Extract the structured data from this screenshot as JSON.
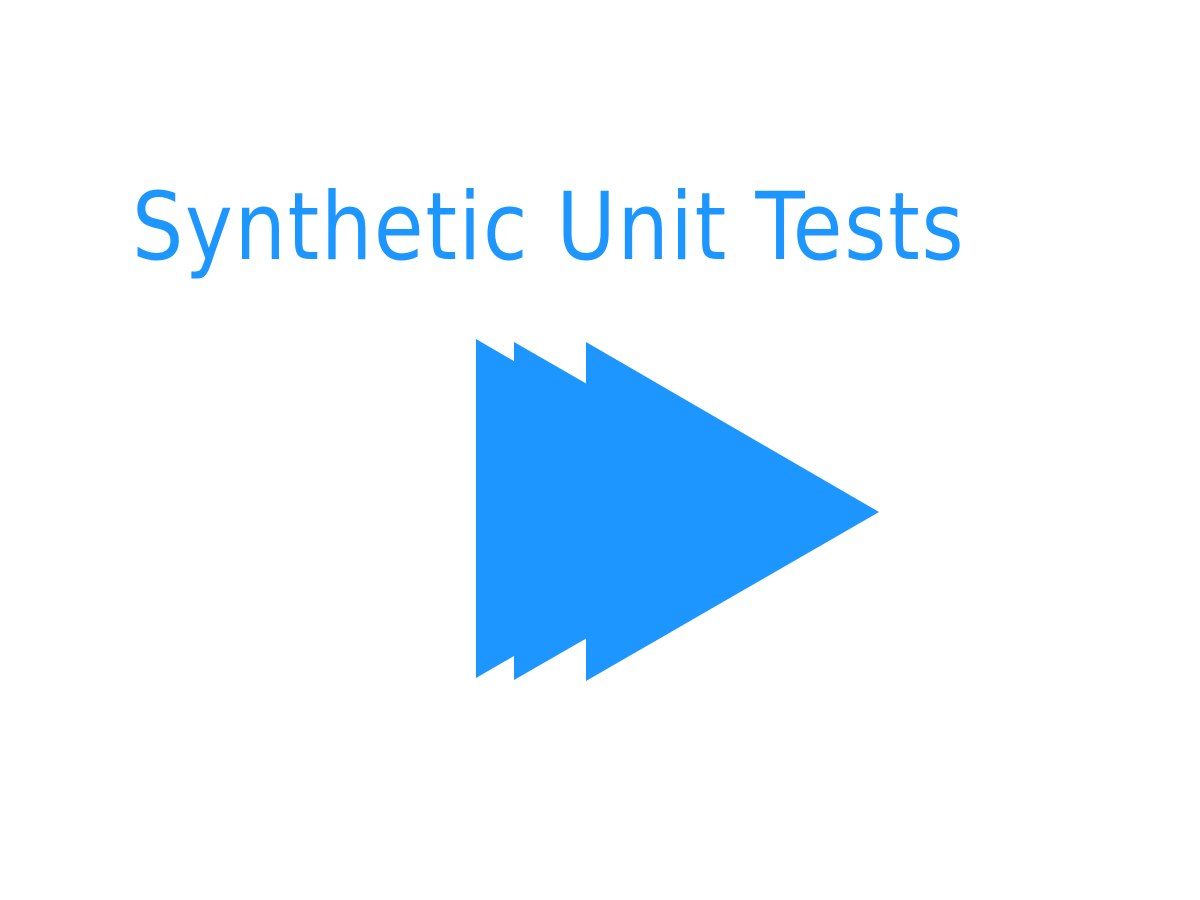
{
  "logo": {
    "title": "Synthetic Unit Tests",
    "icon": "fast-forward-play-icon",
    "accent_color": "#1e96ff",
    "background_color": "#ffffff"
  }
}
